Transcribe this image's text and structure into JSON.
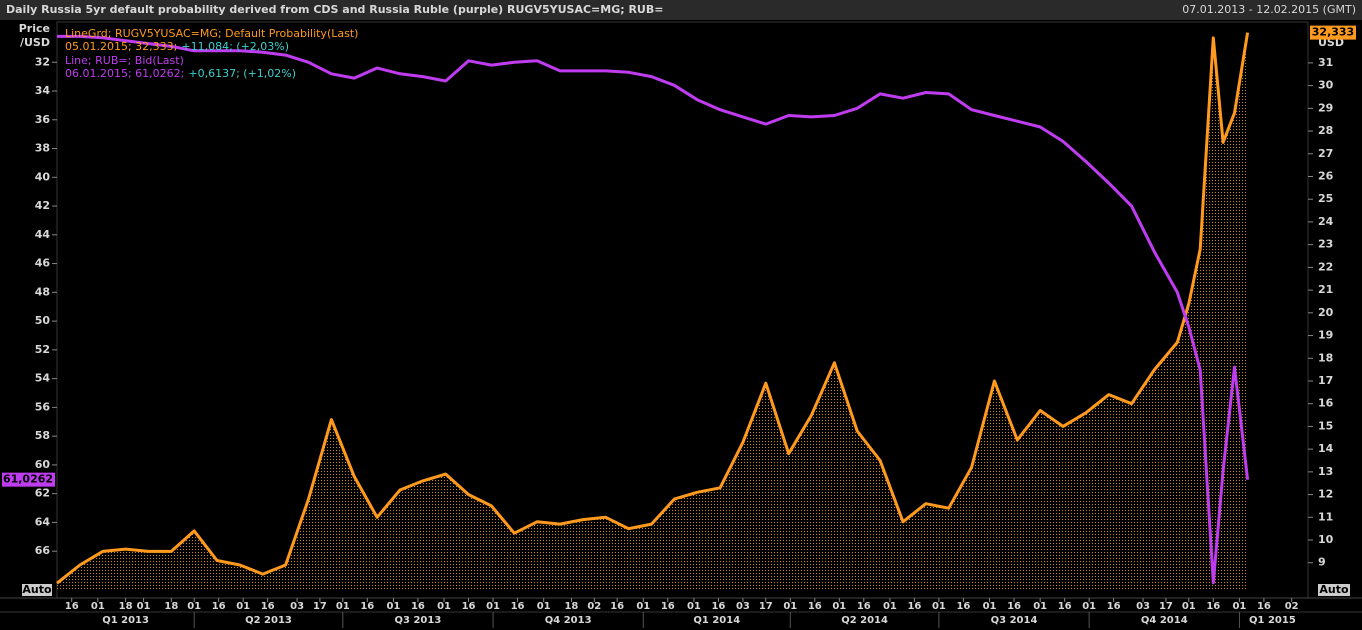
{
  "chart_data": {
    "type": "line",
    "title": "Daily Russia 5yr default probability derived from CDS and Russia Ruble (purple) RUGV5YUSAC=MG; RUB=",
    "date_range": "07.01.2013 - 12.02.2015 (GMT)",
    "y_label": [
      "Price",
      "/USD"
    ],
    "y2_label": "USD",
    "buttons": [
      "Auto",
      "Auto"
    ],
    "x": [
      "2013-01-07",
      "2013-01-21",
      "2013-02-04",
      "2013-02-18",
      "2013-03-04",
      "2013-03-18",
      "2013-04-01",
      "2013-04-15",
      "2013-04-29",
      "2013-05-13",
      "2013-05-27",
      "2013-06-10",
      "2013-06-24",
      "2013-07-08",
      "2013-07-22",
      "2013-08-05",
      "2013-08-19",
      "2013-09-02",
      "2013-09-16",
      "2013-09-30",
      "2013-10-14",
      "2013-10-28",
      "2013-11-11",
      "2013-11-25",
      "2013-12-09",
      "2013-12-23",
      "2014-01-06",
      "2014-01-20",
      "2014-02-03",
      "2014-02-17",
      "2014-03-03",
      "2014-03-17",
      "2014-03-31",
      "2014-04-14",
      "2014-04-28",
      "2014-05-12",
      "2014-05-26",
      "2014-06-09",
      "2014-06-23",
      "2014-07-07",
      "2014-07-21",
      "2014-08-04",
      "2014-08-18",
      "2014-09-01",
      "2014-09-15",
      "2014-09-29",
      "2014-10-13",
      "2014-10-27",
      "2014-11-10",
      "2014-11-24",
      "2014-12-01",
      "2014-12-08",
      "2014-12-16",
      "2014-12-22",
      "2014-12-29",
      "2015-01-06"
    ],
    "xlim": [
      "2013-01-07",
      "2015-02-12"
    ],
    "xticks": [
      {
        "value": "2013-01-16",
        "label": "16"
      },
      {
        "value": "2013-02-01",
        "label": "01"
      },
      {
        "value": "2013-02-18",
        "label": "18"
      },
      {
        "value": "2013-03-01",
        "label": "01"
      },
      {
        "value": "2013-03-18",
        "label": "18"
      },
      {
        "value": "2013-04-01",
        "label": "01"
      },
      {
        "value": "2013-04-16",
        "label": "16"
      },
      {
        "value": "2013-05-01",
        "label": "01"
      },
      {
        "value": "2013-05-16",
        "label": "16"
      },
      {
        "value": "2013-06-03",
        "label": "03"
      },
      {
        "value": "2013-06-17",
        "label": "17"
      },
      {
        "value": "2013-07-01",
        "label": "01"
      },
      {
        "value": "2013-07-16",
        "label": "16"
      },
      {
        "value": "2013-08-01",
        "label": "01"
      },
      {
        "value": "2013-08-16",
        "label": "16"
      },
      {
        "value": "2013-09-01",
        "label": "01"
      },
      {
        "value": "2013-09-16",
        "label": "16"
      },
      {
        "value": "2013-10-01",
        "label": "01"
      },
      {
        "value": "2013-10-16",
        "label": "16"
      },
      {
        "value": "2013-11-01",
        "label": "01"
      },
      {
        "value": "2013-11-18",
        "label": "18"
      },
      {
        "value": "2013-12-02",
        "label": "02"
      },
      {
        "value": "2013-12-16",
        "label": "16"
      },
      {
        "value": "2014-01-01",
        "label": "01"
      },
      {
        "value": "2014-01-16",
        "label": "16"
      },
      {
        "value": "2014-02-01",
        "label": "01"
      },
      {
        "value": "2014-02-16",
        "label": "16"
      },
      {
        "value": "2014-03-03",
        "label": "03"
      },
      {
        "value": "2014-03-17",
        "label": "17"
      },
      {
        "value": "2014-04-01",
        "label": "01"
      },
      {
        "value": "2014-04-16",
        "label": "16"
      },
      {
        "value": "2014-05-01",
        "label": "01"
      },
      {
        "value": "2014-05-16",
        "label": "16"
      },
      {
        "value": "2014-06-01",
        "label": "01"
      },
      {
        "value": "2014-06-16",
        "label": "16"
      },
      {
        "value": "2014-07-01",
        "label": "01"
      },
      {
        "value": "2014-07-16",
        "label": "16"
      },
      {
        "value": "2014-08-01",
        "label": "01"
      },
      {
        "value": "2014-08-16",
        "label": "16"
      },
      {
        "value": "2014-09-01",
        "label": "01"
      },
      {
        "value": "2014-09-16",
        "label": "16"
      },
      {
        "value": "2014-10-01",
        "label": "01"
      },
      {
        "value": "2014-10-16",
        "label": "16"
      },
      {
        "value": "2014-11-03",
        "label": "03"
      },
      {
        "value": "2014-11-17",
        "label": "17"
      },
      {
        "value": "2014-12-01",
        "label": "01"
      },
      {
        "value": "2014-12-16",
        "label": "16"
      },
      {
        "value": "2015-01-01",
        "label": "01"
      },
      {
        "value": "2015-01-16",
        "label": "16"
      },
      {
        "value": "2015-02-02",
        "label": "02"
      }
    ],
    "quarters": [
      {
        "value": "2013-01-01",
        "label": "Q1 2013"
      },
      {
        "value": "2013-04-01",
        "label": "Q2 2013"
      },
      {
        "value": "2013-07-01",
        "label": "Q3 2013"
      },
      {
        "value": "2013-10-01",
        "label": "Q4 2013"
      },
      {
        "value": "2014-01-01",
        "label": "Q1 2014"
      },
      {
        "value": "2014-04-01",
        "label": "Q2 2014"
      },
      {
        "value": "2014-07-01",
        "label": "Q3 2014"
      },
      {
        "value": "2014-10-01",
        "label": "Q4 2014"
      },
      {
        "value": "2015-01-01",
        "label": "Q1 2015"
      }
    ],
    "ylim": [
      68.7,
      29.2
    ],
    "yticks": [
      32,
      34,
      36,
      38,
      40,
      42,
      44,
      46,
      48,
      50,
      52,
      54,
      56,
      58,
      60,
      62,
      64,
      66
    ],
    "y2lim": [
      7.8,
      32.8
    ],
    "y2ticks": [
      9,
      10,
      11,
      12,
      13,
      14,
      15,
      16,
      17,
      18,
      19,
      20,
      21,
      22,
      23,
      24,
      25,
      26,
      27,
      28,
      29,
      30,
      31
    ],
    "grid": false,
    "series": [
      {
        "name": "Line; RUB=; Bid(Last)",
        "info": "06.01.2015; 61,0262;",
        "change": "+0,6137; (+1,02%)",
        "color": "#c03cf0",
        "axis": "y",
        "last_label": "61,0262",
        "values": [
          30.2,
          30.2,
          30.3,
          30.5,
          30.7,
          30.9,
          31.2,
          31.2,
          31.2,
          31.3,
          31.5,
          32.0,
          32.8,
          33.1,
          32.4,
          32.8,
          33.0,
          33.3,
          31.9,
          32.2,
          32.0,
          31.9,
          32.6,
          32.6,
          32.6,
          32.7,
          33.0,
          33.6,
          34.6,
          35.3,
          35.8,
          36.3,
          35.7,
          35.8,
          35.7,
          35.2,
          34.2,
          34.5,
          34.1,
          34.2,
          35.3,
          35.7,
          36.1,
          36.5,
          37.5,
          38.9,
          40.4,
          42.0,
          45.2,
          48.0,
          50.4,
          53.4,
          68.2,
          60.4,
          53.2,
          61.0262
        ]
      },
      {
        "name": "LineGrd; RUGV5YUSAC=MG; Default Probability(Last)",
        "info": "05.01.2015; 32,333;",
        "change": "+11,084; (+2,03%)",
        "color": "#ff9a1e",
        "axis": "y2",
        "last_label": "32,333",
        "values": [
          8.1,
          8.9,
          9.5,
          9.6,
          9.5,
          9.5,
          10.4,
          9.1,
          8.9,
          8.5,
          8.9,
          11.8,
          15.3,
          12.8,
          11.0,
          12.2,
          12.6,
          12.9,
          12.0,
          11.5,
          10.3,
          10.8,
          10.7,
          10.9,
          11.0,
          10.5,
          10.7,
          11.8,
          12.1,
          12.3,
          14.3,
          16.9,
          13.8,
          15.5,
          17.8,
          14.8,
          13.5,
          10.8,
          11.6,
          11.4,
          13.2,
          17.0,
          14.4,
          15.7,
          15.0,
          15.6,
          16.4,
          16.0,
          17.5,
          18.7,
          20.4,
          22.8,
          32.1,
          27.5,
          28.8,
          32.333
        ]
      }
    ]
  }
}
